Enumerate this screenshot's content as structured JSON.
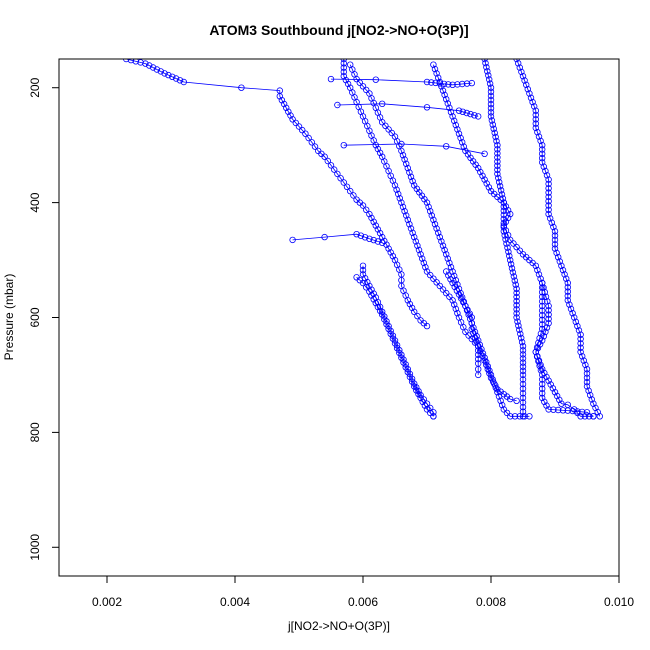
{
  "chart_data": {
    "type": "scatter",
    "title": "ATOM3 Southbound j[NO2->NO+O(3P)]",
    "xlabel": "j[NO2->NO+O(3P)]",
    "ylabel": "Pressure (mbar)",
    "xlim": [
      0.00125,
      0.01
    ],
    "ylim": [
      1050,
      150
    ],
    "y_axis_inverted": true,
    "grid": false,
    "legend": "none",
    "marker": "open-circle",
    "connected_with_lines": true,
    "color": "#0000ff",
    "x_ticks": [
      0.002,
      0.004,
      0.006,
      0.008,
      0.01
    ],
    "x_tick_labels": [
      "0.002",
      "0.004",
      "0.006",
      "0.008",
      "0.010"
    ],
    "y_ticks": [
      200,
      400,
      600,
      800,
      1000
    ],
    "y_tick_labels": [
      "200",
      "400",
      "600",
      "800",
      "1000"
    ],
    "series": [
      {
        "points": [
          [
            0.0023,
            150
          ],
          [
            0.0026,
            158
          ],
          [
            0.0029,
            175
          ],
          [
            0.0032,
            190
          ],
          [
            0.0041,
            200
          ],
          [
            0.0047,
            205
          ],
          [
            0.0047,
            215
          ],
          [
            0.0048,
            235
          ],
          [
            0.0049,
            255
          ],
          [
            0.0051,
            280
          ],
          [
            0.0052,
            295
          ],
          [
            0.0053,
            310
          ],
          [
            0.0054,
            320
          ],
          [
            0.0055,
            335
          ],
          [
            0.0056,
            350
          ],
          [
            0.0057,
            365
          ],
          [
            0.0058,
            380
          ],
          [
            0.0059,
            395
          ],
          [
            0.006,
            405
          ],
          [
            0.0061,
            420
          ],
          [
            0.0062,
            440
          ],
          [
            0.0063,
            460
          ],
          [
            0.0064,
            480
          ],
          [
            0.0065,
            500
          ],
          [
            0.0066,
            525
          ],
          [
            0.0066,
            545
          ],
          [
            0.0067,
            570
          ],
          [
            0.0068,
            590
          ],
          [
            0.0069,
            605
          ],
          [
            0.007,
            615
          ]
        ]
      },
      {
        "points": [
          [
            0.006,
            510
          ],
          [
            0.006,
            525
          ],
          [
            0.0061,
            545
          ],
          [
            0.0062,
            565
          ],
          [
            0.0063,
            590
          ],
          [
            0.0064,
            615
          ],
          [
            0.0065,
            640
          ],
          [
            0.0066,
            665
          ],
          [
            0.0067,
            690
          ],
          [
            0.0068,
            715
          ],
          [
            0.0069,
            735
          ],
          [
            0.007,
            750
          ],
          [
            0.0071,
            765
          ],
          [
            0.0071,
            772
          ]
        ]
      },
      {
        "points": [
          [
            0.0059,
            530
          ],
          [
            0.006,
            540
          ],
          [
            0.0061,
            555
          ],
          [
            0.0062,
            575
          ],
          [
            0.0063,
            595
          ],
          [
            0.0064,
            620
          ],
          [
            0.0065,
            645
          ],
          [
            0.0066,
            670
          ],
          [
            0.0067,
            695
          ],
          [
            0.0068,
            720
          ],
          [
            0.0069,
            740
          ],
          [
            0.007,
            760
          ],
          [
            0.0071,
            772
          ]
        ]
      },
      {
        "points": [
          [
            0.0057,
            150
          ],
          [
            0.0057,
            165
          ],
          [
            0.0057,
            180
          ],
          [
            0.0058,
            200
          ],
          [
            0.0059,
            225
          ],
          [
            0.006,
            250
          ],
          [
            0.0061,
            275
          ],
          [
            0.0062,
            300
          ],
          [
            0.0063,
            320
          ],
          [
            0.0064,
            345
          ],
          [
            0.0065,
            370
          ],
          [
            0.0066,
            400
          ],
          [
            0.0067,
            430
          ],
          [
            0.0068,
            460
          ],
          [
            0.0069,
            490
          ],
          [
            0.007,
            520
          ],
          [
            0.0072,
            545
          ],
          [
            0.0074,
            570
          ],
          [
            0.0075,
            600
          ],
          [
            0.0076,
            625
          ],
          [
            0.0078,
            650
          ],
          [
            0.0079,
            675
          ],
          [
            0.008,
            705
          ],
          [
            0.0081,
            725
          ],
          [
            0.0083,
            742
          ],
          [
            0.0084,
            745
          ]
        ]
      },
      {
        "points": [
          [
            0.0058,
            160
          ],
          [
            0.0059,
            185
          ],
          [
            0.0061,
            210
          ],
          [
            0.0062,
            235
          ],
          [
            0.0063,
            260
          ],
          [
            0.0065,
            285
          ],
          [
            0.0066,
            310
          ],
          [
            0.0067,
            340
          ],
          [
            0.0068,
            370
          ],
          [
            0.007,
            400
          ],
          [
            0.0071,
            430
          ],
          [
            0.0072,
            460
          ],
          [
            0.0073,
            490
          ],
          [
            0.0074,
            520
          ],
          [
            0.0075,
            550
          ],
          [
            0.0076,
            580
          ],
          [
            0.0077,
            610
          ],
          [
            0.0078,
            640
          ],
          [
            0.0079,
            670
          ],
          [
            0.008,
            700
          ],
          [
            0.0081,
            730
          ],
          [
            0.0082,
            760
          ],
          [
            0.0083,
            772
          ],
          [
            0.0086,
            772
          ]
        ]
      },
      {
        "points": [
          [
            0.0071,
            160
          ],
          [
            0.0072,
            190
          ],
          [
            0.0073,
            220
          ],
          [
            0.0074,
            250
          ],
          [
            0.0075,
            280
          ],
          [
            0.0076,
            310
          ],
          [
            0.0078,
            340
          ],
          [
            0.0079,
            360
          ],
          [
            0.008,
            380
          ],
          [
            0.0082,
            400
          ],
          [
            0.0083,
            420
          ],
          [
            0.0082,
            440
          ],
          [
            0.0083,
            465
          ],
          [
            0.0085,
            490
          ],
          [
            0.0087,
            510
          ],
          [
            0.0088,
            540
          ],
          [
            0.0088,
            580
          ],
          [
            0.0088,
            620
          ],
          [
            0.0087,
            660
          ],
          [
            0.0088,
            700
          ],
          [
            0.0088,
            740
          ],
          [
            0.0089,
            760
          ],
          [
            0.0092,
            762
          ],
          [
            0.0095,
            765
          ],
          [
            0.0096,
            772
          ]
        ]
      },
      {
        "points": [
          [
            0.0079,
            150
          ],
          [
            0.008,
            200
          ],
          [
            0.008,
            250
          ],
          [
            0.0081,
            300
          ],
          [
            0.0081,
            350
          ],
          [
            0.0082,
            400
          ],
          [
            0.0082,
            450
          ],
          [
            0.0083,
            500
          ],
          [
            0.0084,
            550
          ],
          [
            0.0084,
            600
          ],
          [
            0.0085,
            650
          ],
          [
            0.0085,
            700
          ],
          [
            0.0085,
            740
          ],
          [
            0.0085,
            772
          ]
        ]
      },
      {
        "points": [
          [
            0.0084,
            150
          ],
          [
            0.0085,
            180
          ],
          [
            0.0086,
            210
          ],
          [
            0.0087,
            240
          ],
          [
            0.0087,
            270
          ],
          [
            0.0088,
            300
          ],
          [
            0.0088,
            330
          ],
          [
            0.0089,
            360
          ],
          [
            0.0089,
            390
          ],
          [
            0.0089,
            420
          ],
          [
            0.009,
            450
          ],
          [
            0.009,
            480
          ],
          [
            0.0091,
            510
          ],
          [
            0.0092,
            540
          ],
          [
            0.0092,
            570
          ],
          [
            0.0093,
            600
          ],
          [
            0.0094,
            630
          ],
          [
            0.0094,
            660
          ],
          [
            0.0095,
            690
          ],
          [
            0.0095,
            720
          ],
          [
            0.0096,
            750
          ],
          [
            0.0097,
            772
          ]
        ]
      },
      {
        "points": [
          [
            0.0088,
            540
          ],
          [
            0.0089,
            580
          ],
          [
            0.0089,
            610
          ],
          [
            0.0088,
            640
          ],
          [
            0.0087,
            660
          ],
          [
            0.0088,
            690
          ],
          [
            0.0089,
            710
          ],
          [
            0.009,
            730
          ],
          [
            0.0091,
            750
          ],
          [
            0.0092,
            752
          ],
          [
            0.0093,
            760
          ],
          [
            0.0094,
            772
          ],
          [
            0.0096,
            772
          ]
        ]
      },
      {
        "points": [
          [
            0.0055,
            185
          ],
          [
            0.0062,
            186
          ],
          [
            0.007,
            190
          ],
          [
            0.0074,
            195
          ],
          [
            0.0077,
            192
          ]
        ]
      },
      {
        "points": [
          [
            0.0056,
            230
          ],
          [
            0.0063,
            228
          ],
          [
            0.007,
            234
          ],
          [
            0.0075,
            240
          ],
          [
            0.0078,
            250
          ]
        ]
      },
      {
        "points": [
          [
            0.0057,
            300
          ],
          [
            0.0066,
            298
          ],
          [
            0.0073,
            302
          ],
          [
            0.0079,
            315
          ]
        ]
      },
      {
        "points": [
          [
            0.0049,
            465
          ],
          [
            0.0054,
            460
          ],
          [
            0.0059,
            455
          ],
          [
            0.0061,
            463
          ],
          [
            0.0063,
            470
          ]
        ]
      },
      {
        "points": [
          [
            0.0073,
            520
          ],
          [
            0.0074,
            540
          ],
          [
            0.0075,
            560
          ],
          [
            0.0076,
            580
          ],
          [
            0.0077,
            600
          ],
          [
            0.0077,
            620
          ],
          [
            0.0078,
            650
          ],
          [
            0.0078,
            680
          ],
          [
            0.0078,
            700
          ]
        ]
      }
    ]
  }
}
